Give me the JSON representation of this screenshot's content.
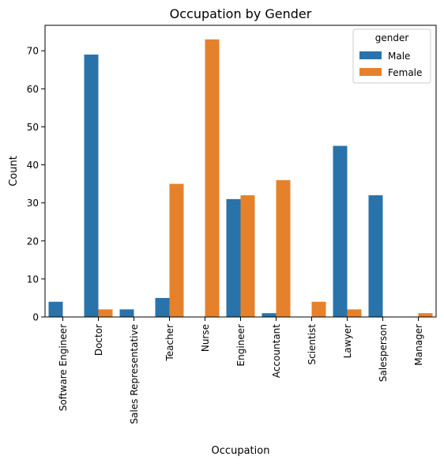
{
  "chart_data": {
    "type": "bar",
    "title": "Occupation by Gender",
    "xlabel": "Occupation",
    "ylabel": "Count",
    "ylim": [
      0,
      76.7
    ],
    "yticks": [
      0,
      10,
      20,
      30,
      40,
      50,
      60,
      70
    ],
    "categories": [
      "Software Engineer",
      "Doctor",
      "Sales Representative",
      "Teacher",
      "Nurse",
      "Engineer",
      "Accountant",
      "Scientist",
      "Lawyer",
      "Salesperson",
      "Manager"
    ],
    "legend": {
      "title": "gender",
      "position": "top-right"
    },
    "grid": false,
    "series": [
      {
        "name": "Male",
        "color": "#2a73aa",
        "values": [
          4,
          69,
          2,
          5,
          0,
          31,
          1,
          0,
          45,
          32,
          0
        ]
      },
      {
        "name": "Female",
        "color": "#e6812b",
        "values": [
          0,
          2,
          0,
          35,
          73,
          32,
          36,
          4,
          2,
          0,
          1
        ]
      }
    ]
  }
}
